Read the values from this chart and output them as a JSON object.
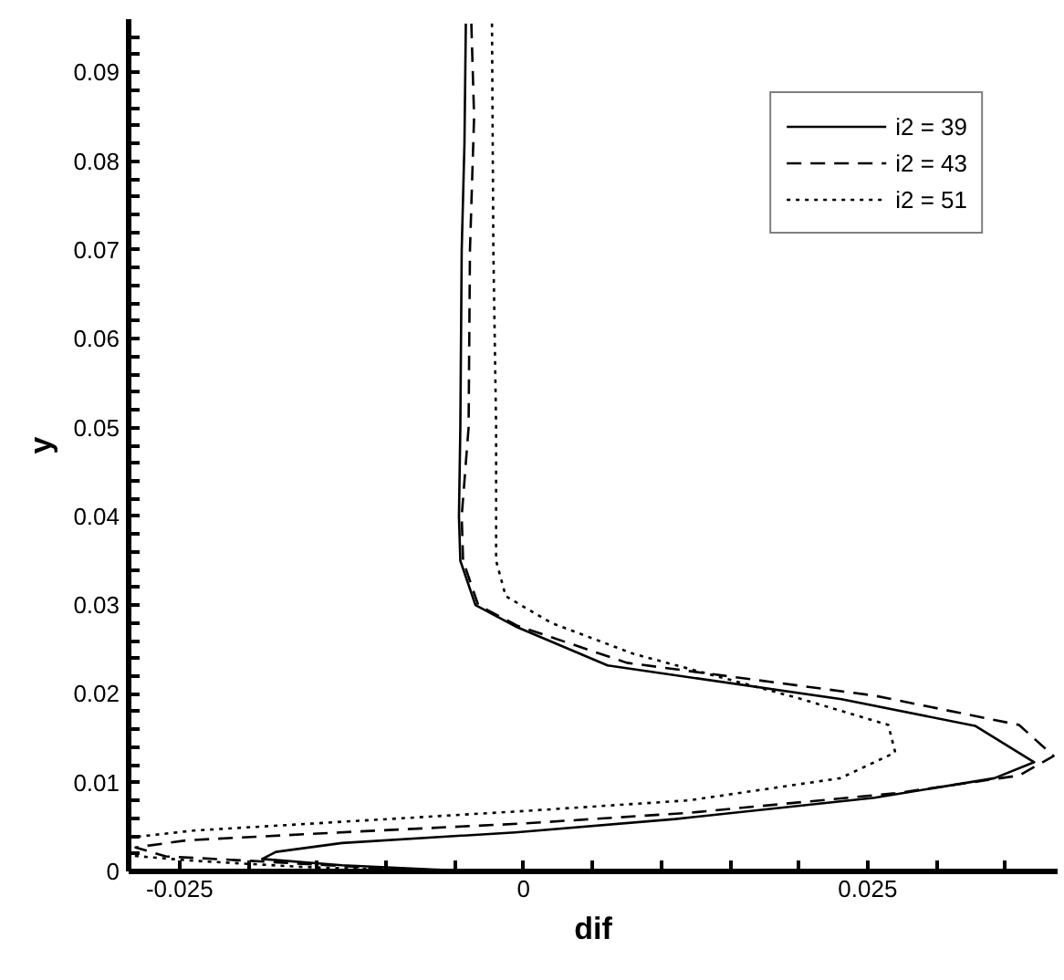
{
  "chart_data": {
    "type": "line",
    "xlabel": "dif",
    "ylabel": "y",
    "xlim": [
      -0.0287,
      0.0388
    ],
    "ylim": [
      0,
      0.096
    ],
    "xticks": [
      {
        "value": -0.025,
        "label": "-0.025"
      },
      {
        "value": -0.02,
        "label": null
      },
      {
        "value": -0.015,
        "label": null
      },
      {
        "value": -0.01,
        "label": null
      },
      {
        "value": -0.005,
        "label": null
      },
      0,
      {
        "value": 0.005,
        "label": null
      },
      {
        "value": 0.01,
        "label": null
      },
      {
        "value": 0.015,
        "label": null
      },
      {
        "value": 0.02,
        "label": null
      },
      0.025,
      {
        "value": 0.03,
        "label": null
      },
      {
        "value": 0.035,
        "label": null
      }
    ],
    "yticks": [
      0,
      {
        "value": 0.002,
        "label": null
      },
      {
        "value": 0.004,
        "label": null
      },
      {
        "value": 0.006,
        "label": null
      },
      {
        "value": 0.008,
        "label": null
      },
      0.01,
      {
        "value": 0.012,
        "label": null
      },
      {
        "value": 0.014,
        "label": null
      },
      {
        "value": 0.016,
        "label": null
      },
      {
        "value": 0.018,
        "label": null
      },
      0.02,
      {
        "value": 0.022,
        "label": null
      },
      {
        "value": 0.024,
        "label": null
      },
      {
        "value": 0.026,
        "label": null
      },
      {
        "value": 0.028,
        "label": null
      },
      0.03,
      {
        "value": 0.032,
        "label": null
      },
      {
        "value": 0.034,
        "label": null
      },
      {
        "value": 0.036,
        "label": null
      },
      {
        "value": 0.038,
        "label": null
      },
      0.04,
      {
        "value": 0.042,
        "label": null
      },
      {
        "value": 0.044,
        "label": null
      },
      {
        "value": 0.046,
        "label": null
      },
      {
        "value": 0.048,
        "label": null
      },
      0.05,
      {
        "value": 0.052,
        "label": null
      },
      {
        "value": 0.054,
        "label": null
      },
      {
        "value": 0.056,
        "label": null
      },
      {
        "value": 0.058,
        "label": null
      },
      0.06,
      {
        "value": 0.062,
        "label": null
      },
      {
        "value": 0.064,
        "label": null
      },
      {
        "value": 0.066,
        "label": null
      },
      {
        "value": 0.068,
        "label": null
      },
      0.07,
      {
        "value": 0.072,
        "label": null
      },
      {
        "value": 0.074,
        "label": null
      },
      {
        "value": 0.076,
        "label": null
      },
      {
        "value": 0.078,
        "label": null
      },
      0.08,
      {
        "value": 0.082,
        "label": null
      },
      {
        "value": 0.084,
        "label": null
      },
      {
        "value": 0.086,
        "label": null
      },
      {
        "value": 0.088,
        "label": null
      },
      0.09,
      {
        "value": 0.092,
        "label": null
      },
      {
        "value": 0.094,
        "label": null
      }
    ],
    "grid": false,
    "legend": "top right",
    "marker": "none",
    "series": [
      {
        "name": "i2 = 39",
        "color": "#000000",
        "line_style": "solid",
        "x": [
          -0.0042,
          -0.0043,
          -0.0045,
          -0.0046,
          -0.0047,
          -0.0046,
          -0.0035,
          -0.0006,
          0.0061,
          0.0231,
          0.0328,
          0.0371,
          0.0342,
          0.0255,
          0.011,
          -0.0006,
          -0.0132,
          -0.018,
          -0.019,
          -0.0132,
          -0.0064,
          -0.0045
        ],
        "values": [
          0.0955,
          0.082,
          0.07,
          0.05,
          0.04,
          0.035,
          0.03,
          0.0276,
          0.0232,
          0.0194,
          0.0164,
          0.0123,
          0.0105,
          0.0083,
          0.0059,
          0.0044,
          0.0032,
          0.0022,
          0.0014,
          0.0007,
          0.0002,
          0.0001
        ]
      },
      {
        "name": "i2 = 43",
        "color": "#000000",
        "line_style": "dashed",
        "x": [
          -0.0038,
          -0.0036,
          -0.0039,
          -0.004,
          -0.0045,
          -0.0044,
          -0.0033,
          -0.0005,
          0.0075,
          0.0255,
          0.036,
          0.0385,
          0.036,
          0.027,
          0.012,
          0.0,
          -0.012,
          -0.0245,
          -0.0282,
          -0.026,
          -0.02,
          -0.012,
          -0.006
        ],
        "values": [
          0.0955,
          0.085,
          0.07,
          0.05,
          0.04,
          0.035,
          0.03,
          0.0277,
          0.0235,
          0.0198,
          0.0165,
          0.013,
          0.0108,
          0.0088,
          0.0066,
          0.0054,
          0.0045,
          0.0035,
          0.0027,
          0.0017,
          0.0012,
          0.0005,
          0.0001
        ]
      },
      {
        "name": "i2 = 51",
        "color": "#000000",
        "line_style": "dotted",
        "x": [
          -0.0023,
          -0.0022,
          -0.002,
          -0.002,
          -0.0013,
          0.002,
          0.008,
          0.02,
          0.0265,
          0.027,
          0.023,
          0.012,
          0.0,
          -0.012,
          -0.024,
          -0.0287,
          -0.0287,
          -0.024,
          -0.016,
          -0.01
        ],
        "values": [
          0.0955,
          0.07,
          0.05,
          0.035,
          0.031,
          0.028,
          0.0245,
          0.0195,
          0.0165,
          0.0134,
          0.0105,
          0.008,
          0.0068,
          0.0057,
          0.0046,
          0.0038,
          0.0018,
          0.0012,
          0.0005,
          0.0002
        ]
      }
    ]
  }
}
